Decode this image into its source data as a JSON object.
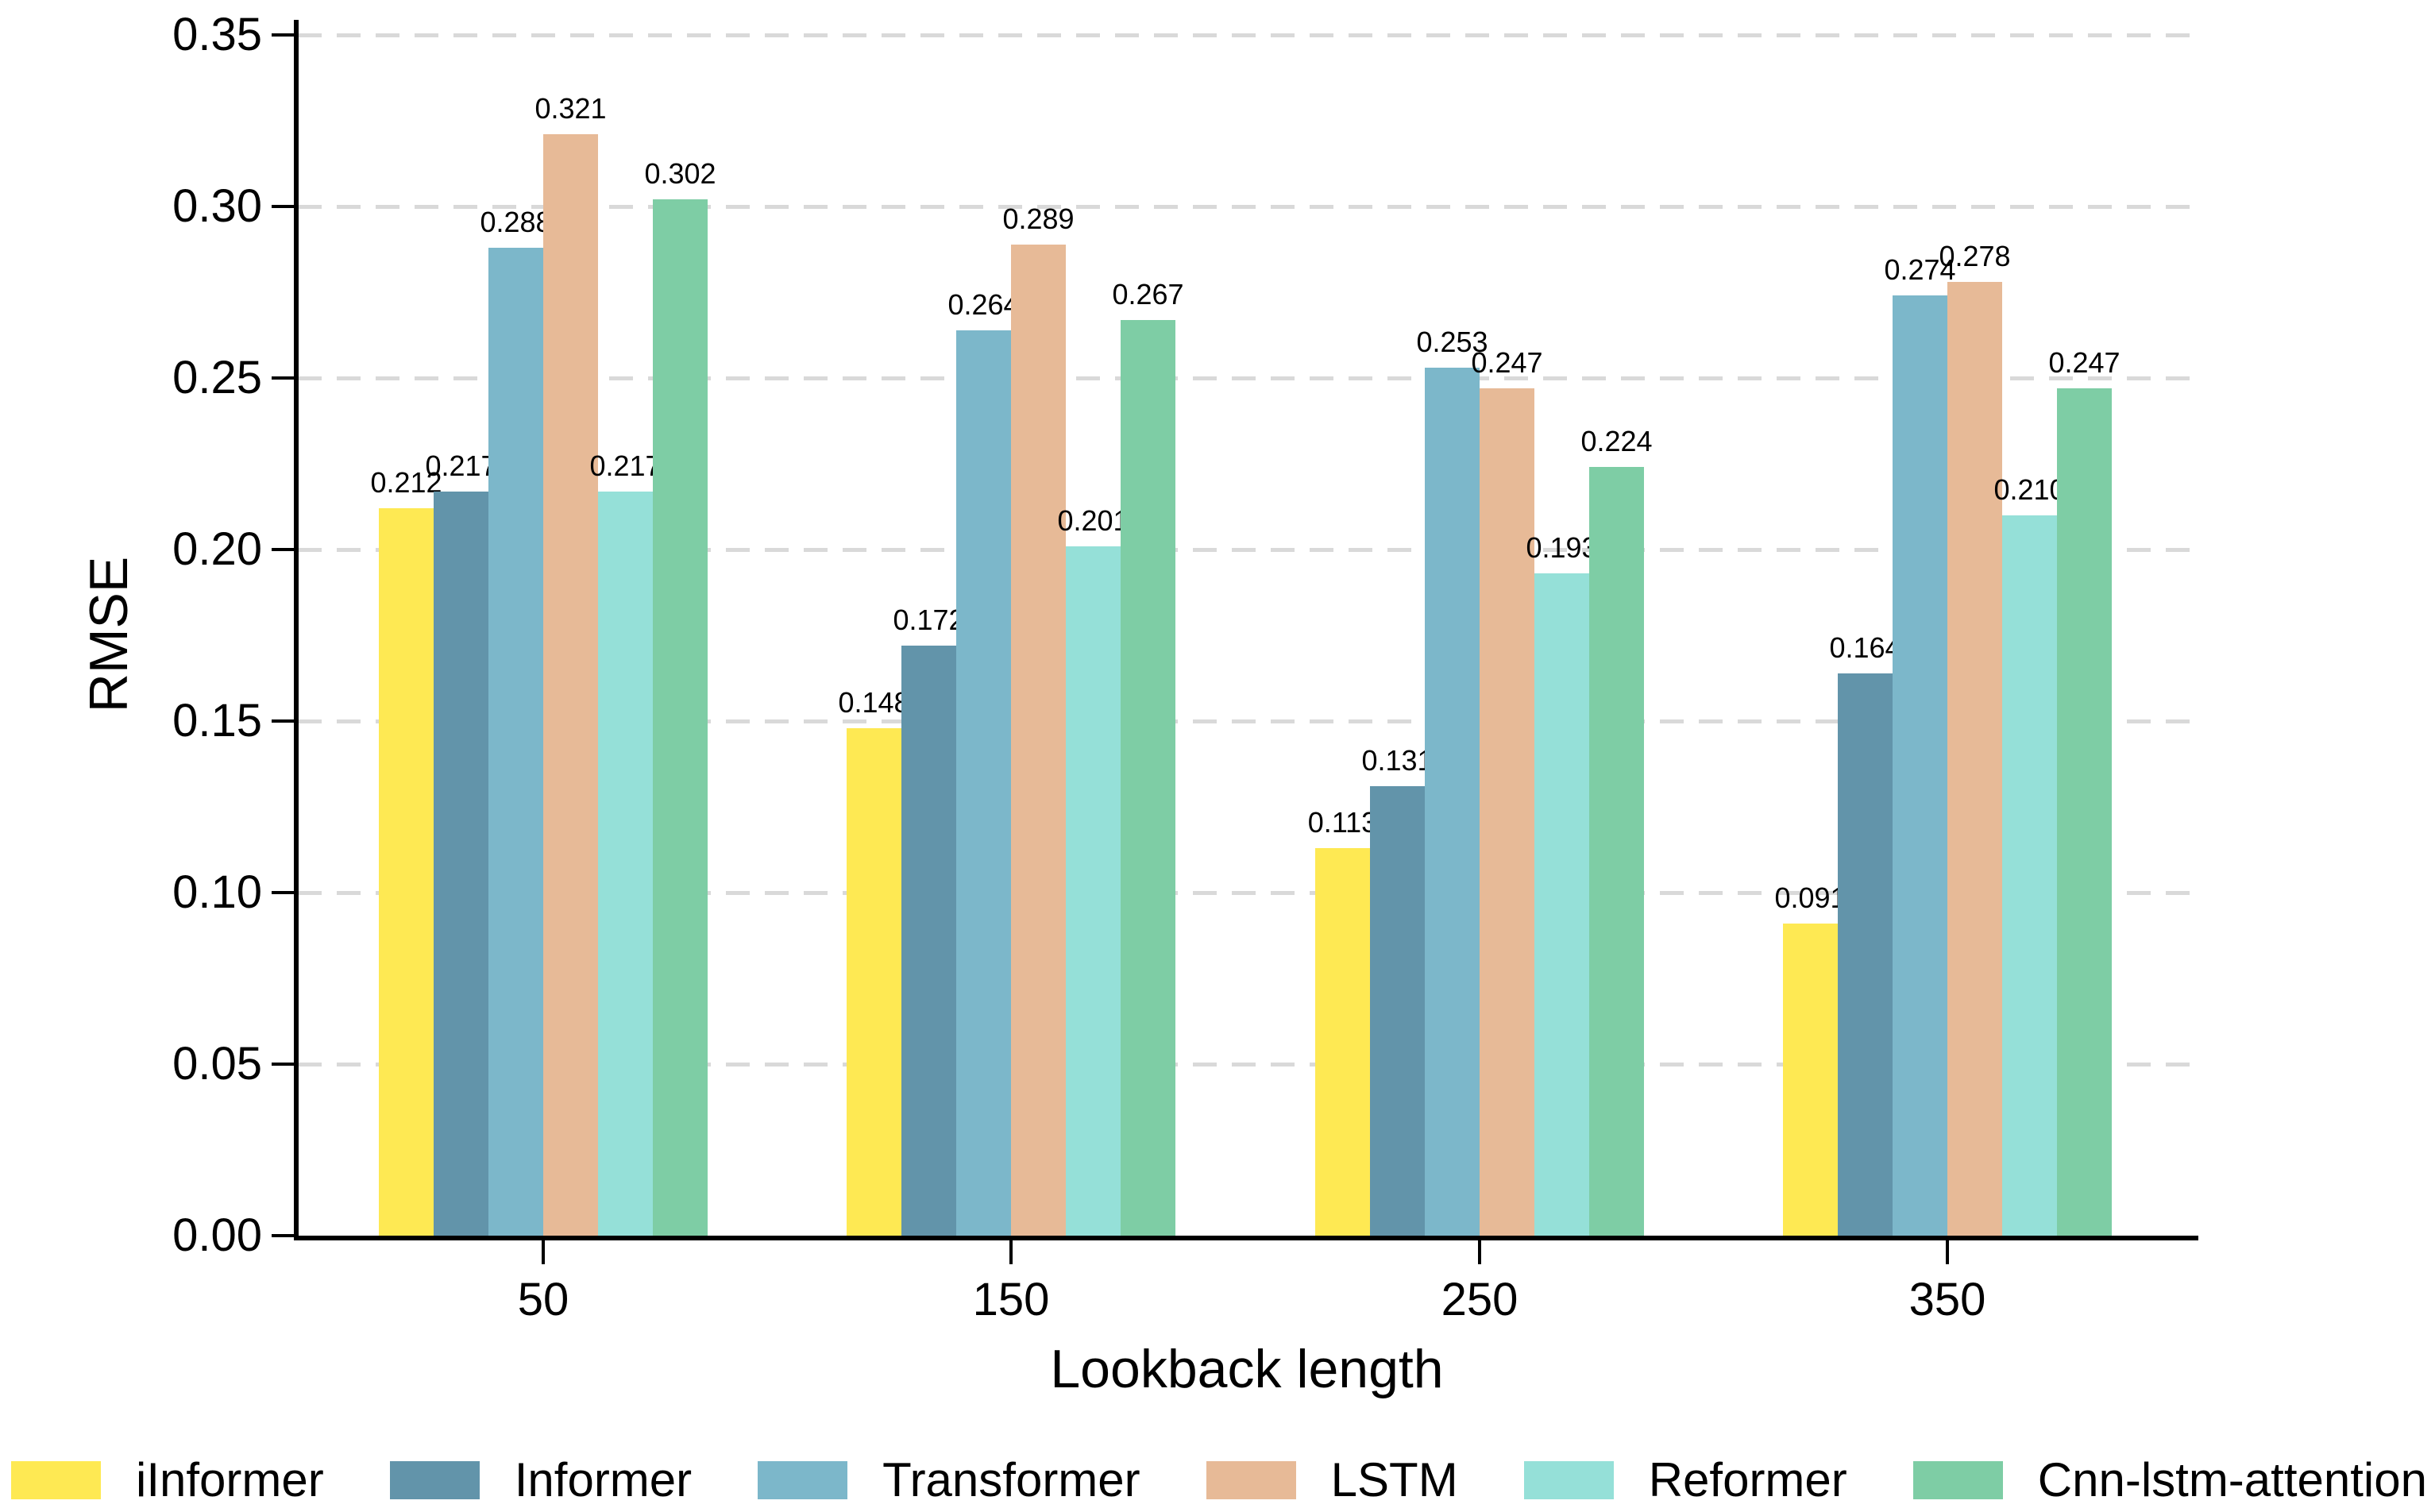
{
  "chart_data": {
    "type": "bar",
    "title": "",
    "xlabel": "Lookback length",
    "ylabel": "RMSE",
    "categories": [
      "50",
      "150",
      "250",
      "350"
    ],
    "series": [
      {
        "name": "iInformer",
        "color": "#FEE953",
        "values": [
          0.212,
          0.148,
          0.113,
          0.091
        ]
      },
      {
        "name": "Informer",
        "color": "#6294AA",
        "values": [
          0.217,
          0.172,
          0.131,
          0.164
        ]
      },
      {
        "name": "Transformer",
        "color": "#7CB7CA",
        "values": [
          0.288,
          0.264,
          0.253,
          0.274
        ]
      },
      {
        "name": "LSTM",
        "color": "#E7BA97",
        "values": [
          0.321,
          0.289,
          0.247,
          0.278
        ]
      },
      {
        "name": "Reformer",
        "color": "#95E0D8",
        "values": [
          0.217,
          0.201,
          0.193,
          0.21
        ]
      },
      {
        "name": "Cnn-lstm-attention",
        "color": "#7ECDA5",
        "values": [
          0.302,
          0.267,
          0.224,
          0.247
        ]
      }
    ],
    "bar_value_labels": [
      [
        "0.212",
        "0.148",
        "0.113",
        "0.091"
      ],
      [
        "0.217",
        "0.172",
        "0.131",
        "0.164"
      ],
      [
        "0.288",
        "0.264",
        "0.253",
        "0.274"
      ],
      [
        "0.321",
        "0.289",
        "0.247",
        "0.278"
      ],
      [
        "0.217",
        "0.201",
        "0.193",
        "0.210"
      ],
      [
        "0.302",
        "0.267",
        "0.224",
        "0.247"
      ]
    ],
    "y_ticks": [
      "0.00",
      "0.05",
      "0.10",
      "0.15",
      "0.20",
      "0.25",
      "0.30",
      "0.35"
    ],
    "ylim": [
      0,
      0.35
    ],
    "grid": "horizontal dashed, light gray",
    "legend_position": "bottom",
    "legend_labels": [
      "iInformer",
      "Informer",
      "Transformer",
      "LSTM",
      "Reformer",
      "Cnn-lstm-attention"
    ],
    "axis_color": "#000000",
    "gridline_color": "#d9d9d9",
    "background_color": "#ffffff"
  }
}
